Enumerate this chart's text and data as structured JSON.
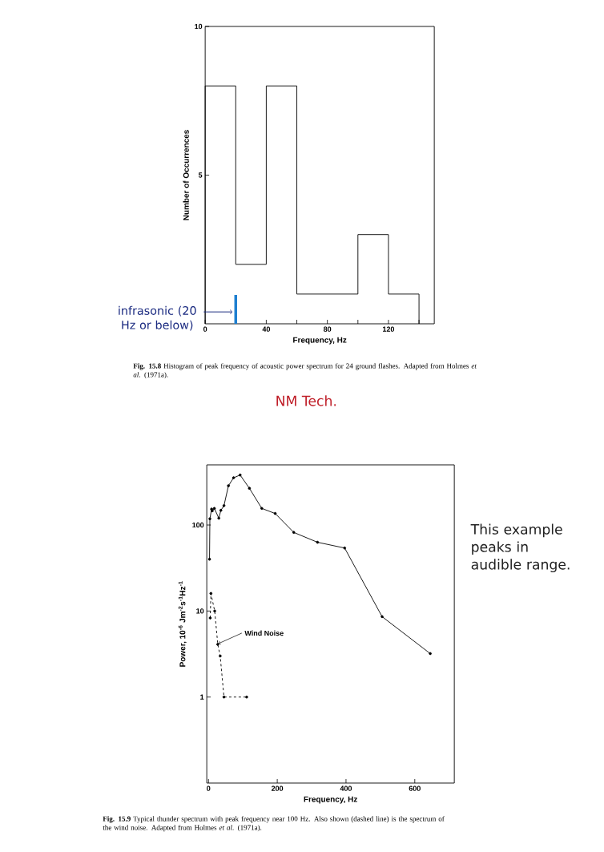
{
  "chart_data": [
    {
      "type": "histogram",
      "bins": [
        0,
        20,
        40,
        60,
        80,
        100,
        120,
        140
      ],
      "values": [
        8,
        2,
        8,
        1,
        1,
        3,
        1
      ],
      "color": "#000000",
      "xlim": [
        0,
        150
      ],
      "xticks": [
        0,
        {
          "value": 20,
          "label": null
        },
        40,
        {
          "value": 60,
          "label": null
        },
        80,
        {
          "value": 100,
          "label": null
        },
        120,
        {
          "value": 140,
          "label": null
        }
      ],
      "ylim": [
        0,
        10
      ],
      "yticks": [
        5,
        10
      ],
      "xlabel": "Frequency, Hz",
      "ylabel": "Number of Occurrences",
      "annotations": [
        "**Fig. 15.8** Histogram of peak frequency of acoustic power spectrum for 24 ground flashes. Adapted from Holmes *et al*. (1971a).",
        {
          "text": "infrasonic (20 Hz or below)",
          "x": 20,
          "y": 0.4
        },
        "NM Tech."
      ],
      "ref_lines": [
        {
          "axis": "x",
          "value": 20,
          "color": "#1f7fd0"
        }
      ]
    },
    {
      "type": "line",
      "log": "y",
      "marker": "circle",
      "series": [
        {
          "color": "#000000",
          "line_style": "solid",
          "x": [
            3,
            4,
            9,
            11,
            17,
            30,
            36,
            45,
            58,
            73,
            92,
            119,
            155,
            194,
            248,
            317,
            396,
            505,
            645
          ],
          "values": [
            40,
            118,
            153,
            146,
            156,
            120,
            148,
            168,
            286,
            354,
            381,
            267,
            156,
            136,
            82,
            63,
            54,
            8.6,
            3.2
          ]
        },
        {
          "color": "#000000",
          "line_style": "dashed",
          "x": [
            5,
            7,
            18,
            27,
            34,
            45,
            111
          ],
          "values": [
            8.3,
            16,
            10,
            4.1,
            3.0,
            1.0,
            1.0
          ]
        }
      ],
      "xlim": [
        -5,
        715
      ],
      "xticks": [
        0,
        200,
        400,
        600
      ],
      "ylim": [
        0.1,
        500
      ],
      "yticks": [
        1,
        10,
        100
      ],
      "xlabel": "Frequency, Hz",
      "ylabel": "Power, 10$^{-6}$ Jm$^{-2}$s$^{-1}$Hz$^{-1}$",
      "annotations": [
        {
          "text": "Wind Noise",
          "x": 27,
          "y": 4.1
        },
        "**Fig. 15.9** Typical thunder spectrum with peak frequency near 100 Hz. Also shown (dashed line) is the spectrum of the wind noise. Adapted from Holmes *et al*. (1971a).",
        "This example peaks in audible range."
      ]
    }
  ]
}
